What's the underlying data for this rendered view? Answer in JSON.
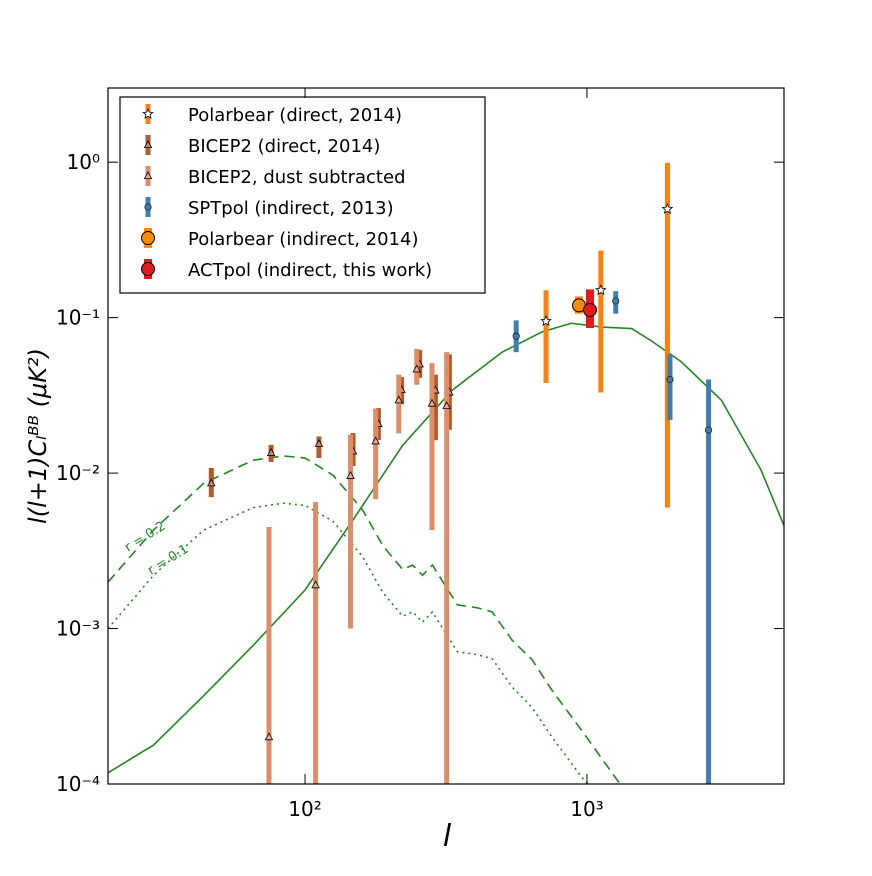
{
  "chart_data": {
    "type": "errorbar",
    "xlabel": "l",
    "ylabel": "l(l+1)Cₗᴮᴮ (μK²)",
    "xscale": "log",
    "yscale": "log",
    "xlim": [
      20,
      5000
    ],
    "ylim": [
      0.0001,
      3
    ],
    "xticks": [
      {
        "value": 100,
        "label": "10²"
      },
      {
        "value": 1000,
        "label": "10³"
      }
    ],
    "yticks": [
      {
        "value": 0.0001,
        "label": "10⁻⁴"
      },
      {
        "value": 0.001,
        "label": "10⁻³"
      },
      {
        "value": 0.01,
        "label": "10⁻²"
      },
      {
        "value": 0.1,
        "label": "10⁻¹"
      },
      {
        "value": 1,
        "label": "10⁰"
      }
    ],
    "legend": "upper left",
    "annotations": [
      "r = 0.2",
      "r = 0.1"
    ],
    "series": [
      {
        "name": "Polarbear (direct, 2014)",
        "kind": "errorbar",
        "marker": "star",
        "color": "#ff7f0e",
        "x": [
          716,
          1120,
          1930
        ],
        "values": [
          0.095,
          0.15,
          0.5
        ],
        "lower": [
          0.038,
          0.033,
          0.006
        ],
        "upper": [
          0.15,
          0.27,
          0.99
        ]
      },
      {
        "name": "BICEP2 (direct, 2014)",
        "kind": "errorbar",
        "marker": "triangle",
        "color": "#b15a2c",
        "x": [
          46.5,
          75.8,
          112,
          148,
          182,
          220,
          255,
          290,
          325
        ],
        "values": [
          0.0086,
          0.0135,
          0.0154,
          0.0138,
          0.0207,
          0.0342,
          0.05,
          0.034,
          0.033
        ],
        "lower": [
          0.007,
          0.0118,
          0.0125,
          0.0111,
          0.0163,
          0.0277,
          0.041,
          0.0163,
          0.019
        ],
        "upper": [
          0.0108,
          0.0152,
          0.0172,
          0.0181,
          0.0262,
          0.0415,
          0.062,
          0.043,
          0.058
        ]
      },
      {
        "name": "BICEP2, dust subtracted",
        "kind": "errorbar",
        "marker": "triangle",
        "color": "#e08c66",
        "x": [
          74.5,
          109,
          145,
          178,
          215,
          249,
          282,
          318
        ],
        "values": [
          0.0002,
          0.0019,
          0.0096,
          0.016,
          0.0294,
          0.0465,
          0.028,
          0.027
        ],
        "lower": [
          5e-05,
          5e-05,
          0.001,
          0.0068,
          0.018,
          0.037,
          0.0043,
          5e-05
        ],
        "upper": [
          0.0045,
          0.0065,
          0.0176,
          0.026,
          0.043,
          0.063,
          0.051,
          0.06
        ]
      },
      {
        "name": "SPTpol (indirect, 2013)",
        "kind": "errorbar",
        "marker": "circle",
        "color": "#3a7fb5",
        "x": [
          561,
          1265,
          1970,
          2700
        ],
        "values": [
          0.076,
          0.128,
          0.04,
          0.0189
        ],
        "lower": [
          0.06,
          0.106,
          0.022,
          5e-05
        ],
        "upper": [
          0.096,
          0.148,
          0.058,
          0.04
        ]
      },
      {
        "name": "Polarbear (indirect, 2014)",
        "kind": "errorbar",
        "marker": "bigcircle",
        "color": "#ff8c00",
        "x": [
          937
        ],
        "values": [
          0.12
        ],
        "lower": [
          0.106
        ],
        "upper": [
          0.137
        ]
      },
      {
        "name": "ACTpol (indirect, this work)",
        "kind": "errorbar",
        "marker": "bigcircle",
        "color": "#e31a1c",
        "x": [
          1025
        ],
        "values": [
          0.112
        ],
        "lower": [
          0.0857
        ],
        "upper": [
          0.152
        ]
      },
      {
        "kind": "line",
        "style": "solid",
        "color": "#1f8a1f",
        "x": [
          20,
          29,
          43.7,
          65.5,
          100,
          148,
          222,
          333,
          500,
          693,
          880,
          1130,
          1440,
          1690,
          2160,
          3000,
          4140,
          5000
        ],
        "values": [
          0.000118,
          0.000178,
          0.00037,
          0.00078,
          0.00177,
          0.005,
          0.0151,
          0.0342,
          0.06,
          0.081,
          0.092,
          0.087,
          0.085,
          0.071,
          0.052,
          0.0294,
          0.0105,
          0.0046
        ]
      },
      {
        "kind": "line",
        "style": "dashed",
        "color": "#1f8a1f",
        "x": [
          20,
          29,
          43.7,
          65.5,
          83.6,
          100,
          125.6,
          160,
          189,
          222,
          241,
          261,
          283,
          347,
          408,
          461,
          543,
          639,
          752,
          960,
          1310
        ],
        "values": [
          0.00199,
          0.0043,
          0.0086,
          0.0121,
          0.0129,
          0.0125,
          0.0097,
          0.0058,
          0.0034,
          0.0024,
          0.00256,
          0.0022,
          0.00256,
          0.00142,
          0.00136,
          0.00128,
          0.00084,
          0.00063,
          0.0004,
          0.00022,
          0.0001
        ]
      },
      {
        "kind": "line",
        "style": "dotted",
        "color": "#1f8a1f",
        "x": [
          20,
          29,
          43.7,
          65.5,
          83.6,
          100,
          125.6,
          160,
          189,
          222,
          241,
          261,
          283,
          347,
          408,
          461,
          543,
          639,
          752,
          960,
          1010
        ],
        "values": [
          0.001,
          0.0022,
          0.0043,
          0.006,
          0.0064,
          0.0062,
          0.0049,
          0.0029,
          0.0017,
          0.0012,
          0.00128,
          0.0011,
          0.00128,
          0.00071,
          0.00068,
          0.00064,
          0.00042,
          0.00031,
          0.0002,
          0.00011,
          0.0001
        ]
      }
    ]
  }
}
